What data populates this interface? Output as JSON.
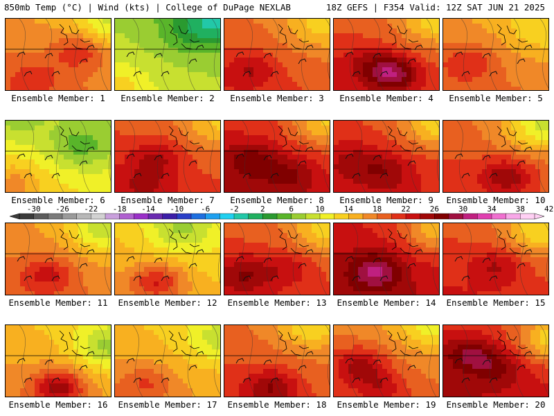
{
  "header": {
    "left": "850mb Temp (°C) | Wind (kts) | College of DuPage NEXLAB",
    "right": "18Z GEFS | F354 Valid: 12Z SAT JUN 21 2025"
  },
  "colorbar": {
    "tick_labels": [
      "-30",
      "-26",
      "-22",
      "-18",
      "-14",
      "-10",
      "-6",
      "-2",
      "2",
      "6",
      "10",
      "14",
      "18",
      "22",
      "26",
      "30",
      "34",
      "38",
      "42"
    ],
    "colors": [
      "#3a3a3a",
      "#5c5c5c",
      "#7a7a7a",
      "#9a9a9a",
      "#b8b8b8",
      "#d2d2d2",
      "#c9a0dc",
      "#b060d0",
      "#9a30c8",
      "#6a2ab0",
      "#3c1ea8",
      "#2a3fc8",
      "#1e6fe0",
      "#1ea0f0",
      "#20d0f0",
      "#22c8a8",
      "#20b060",
      "#2a9a30",
      "#59b52a",
      "#9acd32",
      "#c8e030",
      "#f0f028",
      "#f8d020",
      "#f8b020",
      "#f08828",
      "#e86020",
      "#e03018",
      "#c81010",
      "#a00808",
      "#800000",
      "#a01040",
      "#c02080",
      "#e040b0",
      "#f070d0",
      "#f8a8e8",
      "#ffd0f4"
    ]
  },
  "panels": [
    {
      "label": "Ensemble Member: 1",
      "base": 17,
      "warm": [
        [
          0.7,
          0.45,
          5
        ],
        [
          0.3,
          0.8,
          3
        ]
      ],
      "cold": [
        [
          0.95,
          0.05,
          5
        ]
      ]
    },
    {
      "label": "Ensemble Member: 2",
      "base": 8,
      "warm": [
        [
          0.05,
          0.9,
          3
        ]
      ],
      "cold": [
        [
          1.0,
          0.0,
          6
        ],
        [
          0.7,
          0.2,
          3
        ]
      ]
    },
    {
      "label": "Ensemble Member: 3",
      "base": 19,
      "warm": [
        [
          0.25,
          0.7,
          4
        ]
      ],
      "cold": [
        [
          0.9,
          0.1,
          4
        ]
      ]
    },
    {
      "label": "Ensemble Member: 4",
      "base": 20,
      "warm": [
        [
          0.55,
          0.75,
          9
        ],
        [
          0.3,
          0.6,
          3
        ]
      ],
      "cold": [
        [
          0.95,
          0.05,
          5
        ]
      ]
    },
    {
      "label": "Ensemble Member: 5",
      "base": 17,
      "warm": [
        [
          0.25,
          0.6,
          4
        ]
      ],
      "cold": [
        [
          0.9,
          0.15,
          3
        ]
      ]
    },
    {
      "label": "Ensemble Member: 6",
      "base": 11,
      "warm": [
        [
          0.1,
          0.85,
          4
        ]
      ],
      "cold": [
        [
          0.7,
          0.35,
          5
        ],
        [
          0.1,
          0.0,
          3
        ]
      ]
    },
    {
      "label": "Ensemble Member: 7",
      "base": 20,
      "warm": [
        [
          0.4,
          0.5,
          4
        ],
        [
          0.3,
          0.85,
          3
        ]
      ],
      "cold": [
        [
          0.95,
          0.05,
          4
        ]
      ]
    },
    {
      "label": "Ensemble Member: 8",
      "base": 22,
      "warm": [
        [
          0.25,
          0.55,
          5
        ],
        [
          0.6,
          0.75,
          4
        ]
      ],
      "cold": [
        [
          0.95,
          0.05,
          6
        ]
      ]
    },
    {
      "label": "Ensemble Member: 9",
      "base": 21,
      "warm": [
        [
          0.5,
          0.7,
          4
        ],
        [
          0.2,
          0.55,
          3
        ]
      ],
      "cold": [
        [
          0.95,
          0.05,
          6
        ]
      ]
    },
    {
      "label": "Ensemble Member: 10",
      "base": 19,
      "warm": [
        [
          0.6,
          0.75,
          6
        ]
      ],
      "cold": [
        [
          1.0,
          0.0,
          6
        ],
        [
          0.8,
          0.2,
          3
        ]
      ]
    },
    {
      "label": "Ensemble Member: 11",
      "base": 17,
      "warm": [
        [
          0.4,
          0.7,
          5
        ]
      ],
      "cold": [
        [
          0.9,
          0.1,
          6
        ]
      ]
    },
    {
      "label": "Ensemble Member: 12",
      "base": 14,
      "warm": [
        [
          0.4,
          0.8,
          7
        ]
      ],
      "cold": [
        [
          0.6,
          0.1,
          5
        ]
      ]
    },
    {
      "label": "Ensemble Member: 13",
      "base": 20,
      "warm": [
        [
          0.2,
          0.7,
          5
        ],
        [
          0.6,
          0.6,
          3
        ]
      ],
      "cold": [
        [
          0.95,
          0.1,
          5
        ]
      ]
    },
    {
      "label": "Ensemble Member: 14",
      "base": 23,
      "warm": [
        [
          0.4,
          0.65,
          7
        ]
      ],
      "cold": [
        [
          0.95,
          0.1,
          6
        ]
      ]
    },
    {
      "label": "Ensemble Member: 15",
      "base": 20,
      "warm": [
        [
          0.5,
          0.6,
          4
        ]
      ],
      "cold": [
        [
          0.9,
          0.1,
          6
        ]
      ]
    },
    {
      "label": "Ensemble Member: 16",
      "base": 15,
      "warm": [
        [
          0.5,
          0.85,
          9
        ]
      ],
      "cold": [
        [
          0.95,
          0.3,
          6
        ]
      ]
    },
    {
      "label": "Ensemble Member: 17",
      "base": 15,
      "warm": [
        [
          0.3,
          0.8,
          4
        ]
      ],
      "cold": [
        [
          0.95,
          0.2,
          4
        ]
      ]
    },
    {
      "label": "Ensemble Member: 18",
      "base": 19,
      "warm": [
        [
          0.45,
          0.85,
          6
        ]
      ],
      "cold": [
        [
          0.8,
          0.0,
          5
        ]
      ]
    },
    {
      "label": "Ensemble Member: 19",
      "base": 18,
      "warm": [
        [
          0.25,
          0.55,
          6
        ],
        [
          0.45,
          0.85,
          4
        ]
      ],
      "cold": [
        [
          0.9,
          0.0,
          5
        ]
      ]
    },
    {
      "label": "Ensemble Member: 20",
      "base": 22,
      "warm": [
        [
          0.25,
          0.4,
          6
        ],
        [
          0.5,
          0.6,
          4
        ]
      ],
      "cold": [
        [
          1.0,
          0.2,
          7
        ]
      ]
    }
  ]
}
